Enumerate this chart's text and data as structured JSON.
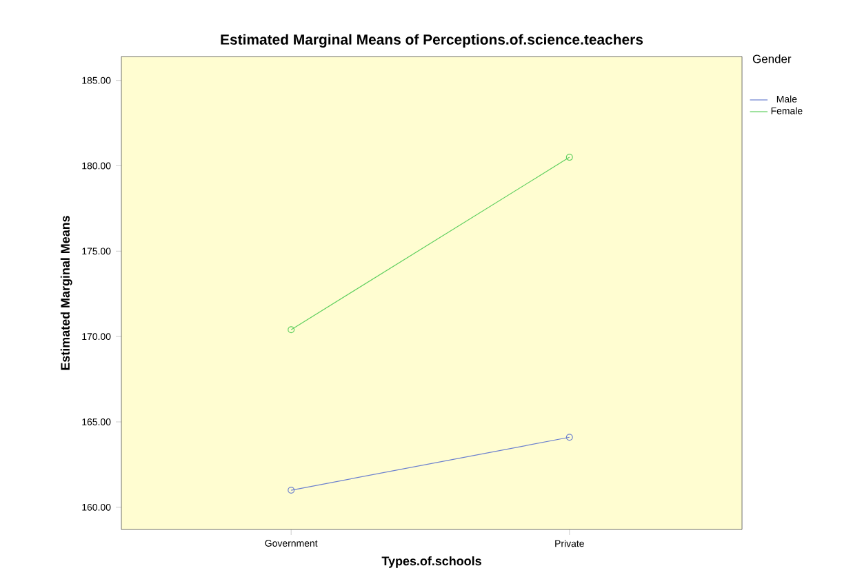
{
  "chart_data": {
    "type": "line",
    "title": "Estimated Marginal Means of Perceptions.of.science.teachers",
    "xlabel": "Types.of.schools",
    "ylabel": "Estimated Marginal Means",
    "legend_title": "Gender",
    "categories": [
      "Government",
      "Private"
    ],
    "series": [
      {
        "name": "Male",
        "color": "#6a7fcf",
        "values": [
          161.0,
          164.1
        ]
      },
      {
        "name": "Female",
        "color": "#5fcf5f",
        "values": [
          170.4,
          180.5
        ]
      }
    ],
    "ylim": [
      158.7,
      186.4
    ],
    "yticks": [
      {
        "value": 160,
        "label": "160.00"
      },
      {
        "value": 165,
        "label": "165.00"
      },
      {
        "value": 170,
        "label": "170.00"
      },
      {
        "value": 175,
        "label": "175.00"
      },
      {
        "value": 180,
        "label": "180.00"
      },
      {
        "value": 185,
        "label": "185.00"
      }
    ],
    "legend": "right",
    "marker": "circle",
    "line_style": "solid"
  }
}
